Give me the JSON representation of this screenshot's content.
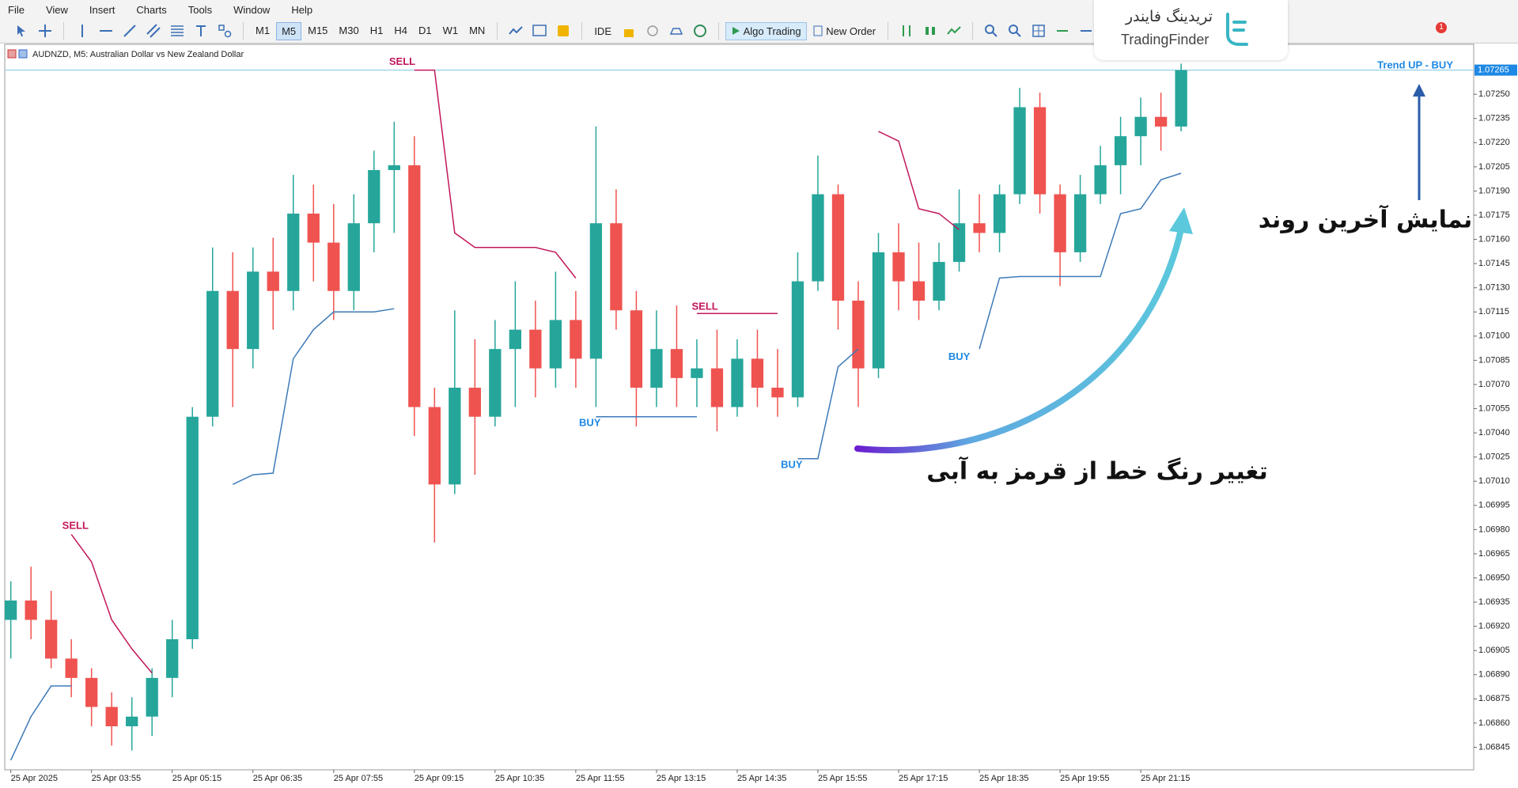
{
  "menu": [
    "File",
    "View",
    "Insert",
    "Charts",
    "Tools",
    "Window",
    "Help"
  ],
  "timeframes": [
    "M1",
    "M5",
    "M15",
    "M30",
    "H1",
    "H4",
    "D1",
    "W1",
    "MN"
  ],
  "selected_timeframe": 1,
  "toolbar": {
    "ide": "IDE",
    "algo_trading": "Algo Trading",
    "new_order": "New Order",
    "notifications": 1
  },
  "logo": {
    "persian": "تریدینگ فایندر",
    "latin": "TradingFinder"
  },
  "annotations": {
    "last_trend": "نمایش آخرین روند",
    "color_change": "تغییر رنگ خط از قرمز به آبی"
  },
  "chart_data": {
    "type": "candlestick",
    "title": "AUDNZD, M5:  Australian Dollar vs New Zealand Dollar",
    "trend_label": "Trend UP - BUY",
    "up_color": "#26a69a",
    "down_color": "#ef5350",
    "xlim": [
      -0.3,
      72.5
    ],
    "xticks": [
      {
        "value": 0,
        "label": "25 Apr 2025"
      },
      {
        "value": 4,
        "label": "25 Apr 03:55"
      },
      {
        "value": 8,
        "label": "25 Apr 05:15"
      },
      {
        "value": 12,
        "label": "25 Apr 06:35"
      },
      {
        "value": 16,
        "label": "25 Apr 07:55"
      },
      {
        "value": 20,
        "label": "25 Apr 09:15"
      },
      {
        "value": 24,
        "label": "25 Apr 10:35"
      },
      {
        "value": 28,
        "label": "25 Apr 11:55"
      },
      {
        "value": 32,
        "label": "25 Apr 13:15"
      },
      {
        "value": 36,
        "label": "25 Apr 14:35"
      },
      {
        "value": 40,
        "label": "25 Apr 15:55"
      },
      {
        "value": 44,
        "label": "25 Apr 17:15"
      },
      {
        "value": 48,
        "label": "25 Apr 18:35"
      },
      {
        "value": 52,
        "label": "25 Apr 19:55"
      },
      {
        "value": 56,
        "label": "25 Apr 21:15"
      }
    ],
    "ylim": [
      1.06831,
      1.07281
    ],
    "yticks": [
      {
        "value": 1.0725,
        "label": "1.07250"
      },
      {
        "value": 1.07235,
        "label": "1.07235"
      },
      {
        "value": 1.0722,
        "label": "1.07220"
      },
      {
        "value": 1.07205,
        "label": "1.07205"
      },
      {
        "value": 1.0719,
        "label": "1.07190"
      },
      {
        "value": 1.07175,
        "label": "1.07175"
      },
      {
        "value": 1.0716,
        "label": "1.07160"
      },
      {
        "value": 1.07145,
        "label": "1.07145"
      },
      {
        "value": 1.0713,
        "label": "1.07130"
      },
      {
        "value": 1.07115,
        "label": "1.07115"
      },
      {
        "value": 1.071,
        "label": "1.07100"
      },
      {
        "value": 1.07085,
        "label": "1.07085"
      },
      {
        "value": 1.0707,
        "label": "1.07070"
      },
      {
        "value": 1.07055,
        "label": "1.07055"
      },
      {
        "value": 1.0704,
        "label": "1.07040"
      },
      {
        "value": 1.07025,
        "label": "1.07025"
      },
      {
        "value": 1.0701,
        "label": "1.07010"
      },
      {
        "value": 1.06995,
        "label": "1.06995"
      },
      {
        "value": 1.0698,
        "label": "1.06980"
      },
      {
        "value": 1.06965,
        "label": "1.06965"
      },
      {
        "value": 1.0695,
        "label": "1.06950"
      },
      {
        "value": 1.06935,
        "label": "1.06935"
      },
      {
        "value": 1.0692,
        "label": "1.06920"
      },
      {
        "value": 1.06905,
        "label": "1.06905"
      },
      {
        "value": 1.0689,
        "label": "1.06890"
      },
      {
        "value": 1.06875,
        "label": "1.06875"
      },
      {
        "value": 1.0686,
        "label": "1.06860"
      },
      {
        "value": 1.06845,
        "label": "1.06845"
      }
    ],
    "last_price": {
      "value": 1.07265,
      "label": "1.07265"
    },
    "open": [
      1.06924,
      1.06936,
      1.06924,
      1.069,
      1.06888,
      1.0687,
      1.06858,
      1.06864,
      1.06888,
      1.06912,
      1.0705,
      1.07128,
      1.07092,
      1.0714,
      1.07128,
      1.07176,
      1.07158,
      1.07128,
      1.0717,
      1.07203,
      1.07206,
      1.07056,
      1.07008,
      1.07068,
      1.0705,
      1.07092,
      1.07104,
      1.0708,
      1.0711,
      1.07086,
      1.0717,
      1.07116,
      1.07068,
      1.07092,
      1.07074,
      1.0708,
      1.07056,
      1.07086,
      1.07068,
      1.07062,
      1.07134,
      1.07188,
      1.07122,
      1.0708,
      1.07152,
      1.07134,
      1.07122,
      1.07146,
      1.0717,
      1.07164,
      1.07188,
      1.07242,
      1.07188,
      1.07152,
      1.07188,
      1.07206,
      1.07224,
      1.07236,
      1.0723
    ],
    "high": [
      1.06948,
      1.06957,
      1.06942,
      1.06912,
      1.06894,
      1.06879,
      1.06876,
      1.06894,
      1.06924,
      1.07056,
      1.07155,
      1.07152,
      1.07155,
      1.07161,
      1.072,
      1.07194,
      1.07182,
      1.07188,
      1.07215,
      1.07233,
      1.07224,
      1.07068,
      1.07116,
      1.07098,
      1.0711,
      1.07134,
      1.07122,
      1.0714,
      1.07128,
      1.0723,
      1.07191,
      1.07128,
      1.07116,
      1.07119,
      1.07098,
      1.07104,
      1.07098,
      1.07104,
      1.07092,
      1.07152,
      1.07212,
      1.07194,
      1.07134,
      1.07164,
      1.0717,
      1.07158,
      1.07158,
      1.07191,
      1.07188,
      1.07194,
      1.07254,
      1.07251,
      1.07194,
      1.072,
      1.07218,
      1.07236,
      1.07248,
      1.07251,
      1.07269
    ],
    "low": [
      1.069,
      1.06912,
      1.06894,
      1.06876,
      1.06858,
      1.06846,
      1.06843,
      1.06852,
      1.06876,
      1.06906,
      1.07044,
      1.07056,
      1.0708,
      1.07104,
      1.07116,
      1.07134,
      1.0711,
      1.07116,
      1.07152,
      1.07164,
      1.07038,
      1.06972,
      1.07002,
      1.07014,
      1.07044,
      1.07056,
      1.07062,
      1.07068,
      1.07068,
      1.07056,
      1.07104,
      1.07044,
      1.07056,
      1.07056,
      1.07056,
      1.07041,
      1.0705,
      1.07056,
      1.0705,
      1.07056,
      1.07128,
      1.07104,
      1.07056,
      1.07074,
      1.07116,
      1.0711,
      1.07116,
      1.0714,
      1.07152,
      1.07152,
      1.07182,
      1.07176,
      1.07131,
      1.07146,
      1.07182,
      1.07188,
      1.07206,
      1.07215,
      1.07227
    ],
    "close": [
      1.06936,
      1.06924,
      1.069,
      1.06888,
      1.0687,
      1.06858,
      1.06864,
      1.06888,
      1.06912,
      1.0705,
      1.07128,
      1.07092,
      1.0714,
      1.07128,
      1.07176,
      1.07158,
      1.07128,
      1.0717,
      1.07203,
      1.07206,
      1.07056,
      1.07008,
      1.07068,
      1.0705,
      1.07092,
      1.07104,
      1.0708,
      1.0711,
      1.07086,
      1.0717,
      1.07116,
      1.07068,
      1.07092,
      1.07074,
      1.0708,
      1.07056,
      1.07086,
      1.07068,
      1.07062,
      1.07134,
      1.07188,
      1.07122,
      1.0708,
      1.07152,
      1.07134,
      1.07122,
      1.07146,
      1.0717,
      1.07164,
      1.07188,
      1.07242,
      1.07188,
      1.07152,
      1.07188,
      1.07206,
      1.07224,
      1.07236,
      1.0723,
      1.07265
    ],
    "series": [
      {
        "color": "#c2185b",
        "values": [
          null,
          null,
          null,
          1.06977,
          1.0696,
          1.06924,
          1.06906,
          1.06891,
          null,
          null,
          null,
          null,
          null,
          null,
          null,
          null,
          null,
          null,
          null,
          null,
          1.07265,
          1.07265,
          1.07164,
          1.07155,
          1.07155,
          1.07155,
          1.07155,
          1.07152,
          1.07136,
          null,
          null,
          null,
          null,
          null,
          1.07114,
          1.07114,
          1.07114,
          1.07114,
          1.07114,
          null,
          null,
          null,
          null,
          1.07227,
          1.07221,
          1.07179,
          1.07176,
          1.07166,
          null,
          null,
          null,
          null,
          null,
          null,
          null,
          null,
          null,
          null,
          null
        ]
      },
      {
        "color": "#3d7ab8",
        "values": [
          1.06837,
          1.06864,
          1.06883,
          1.06883,
          null,
          null,
          null,
          null,
          null,
          null,
          null,
          1.07008,
          1.07014,
          1.07015,
          1.07086,
          1.07104,
          1.07115,
          1.07115,
          1.07115,
          1.07117,
          null,
          null,
          null,
          null,
          null,
          null,
          null,
          null,
          null,
          1.0705,
          1.0705,
          1.0705,
          1.0705,
          1.0705,
          1.0705,
          null,
          null,
          null,
          null,
          1.07024,
          1.07024,
          1.07081,
          1.07092,
          null,
          null,
          null,
          null,
          null,
          1.07092,
          1.07136,
          1.07137,
          1.07137,
          1.07137,
          1.07137,
          1.07137,
          1.07176,
          1.07179,
          1.07197,
          1.07201
        ]
      }
    ],
    "signals": [
      {
        "label": "SELL",
        "index": 3.2,
        "price": 1.06982,
        "color": "#c2185b"
      },
      {
        "label": "SELL",
        "index": 19.4,
        "price": 1.0727,
        "color": "#c2185b"
      },
      {
        "label": "BUY",
        "index": 28.7,
        "price": 1.07046,
        "color": "#1e88e5"
      },
      {
        "label": "SELL",
        "index": 34.4,
        "price": 1.07118,
        "color": "#c2185b"
      },
      {
        "label": "BUY",
        "index": 38.7,
        "price": 1.0702,
        "color": "#1e88e5"
      },
      {
        "label": "BUY",
        "index": 47,
        "price": 1.07087,
        "color": "#1e88e5"
      }
    ]
  }
}
